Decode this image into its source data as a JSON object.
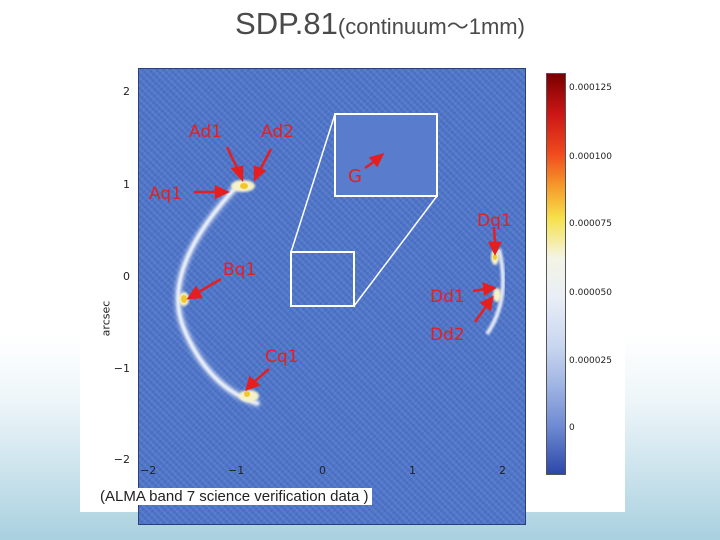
{
  "title": {
    "main": "SDP.81",
    "sub": "(continuum〜1mm)"
  },
  "figure": {
    "y_axis_label": "arcsec",
    "y_ticks": [
      "2",
      "1",
      "0",
      "−1",
      "−2"
    ],
    "x_ticks": [
      "−2",
      "−1",
      "0",
      "1",
      "2"
    ],
    "colorbar_labels": [
      "0.000125",
      "0.000100",
      "0.000075",
      "0.000050",
      "0.000025",
      "0"
    ],
    "annotations": {
      "ad1": "Ad1",
      "ad2": "Ad2",
      "aq1": "Aq1",
      "bq1": "Bq1",
      "cq1": "Cq1",
      "dq1": "Dq1",
      "dd1": "Dd1",
      "dd2": "Dd2",
      "g": "G"
    }
  },
  "caption": "(ALMA band 7 science verification data )"
}
